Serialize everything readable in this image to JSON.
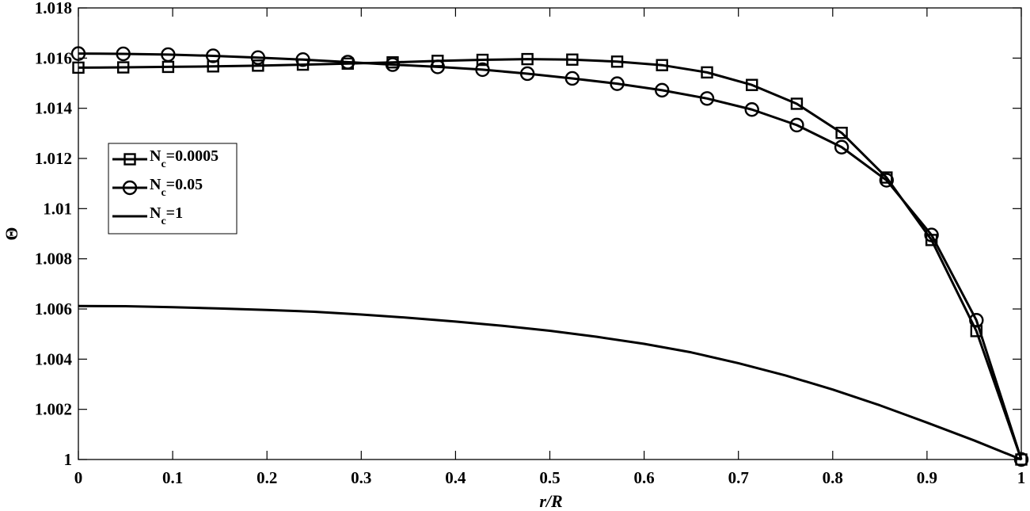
{
  "chart_data": {
    "type": "line",
    "xlabel": "r/R",
    "ylabel": "Θ",
    "xlim": [
      0,
      1
    ],
    "ylim": [
      1,
      1.018
    ],
    "grid": false,
    "legend_placement": "middle-left",
    "x_ticks": [
      "0",
      "0.1",
      "0.2",
      "0.3",
      "0.4",
      "0.5",
      "0.6",
      "0.7",
      "0.8",
      "0.9",
      "1"
    ],
    "y_ticks": [
      "1",
      "1.002",
      "1.004",
      "1.006",
      "1.008",
      "1.01",
      "1.012",
      "1.014",
      "1.016",
      "1.018"
    ],
    "series": [
      {
        "name": "N_c=0.0005",
        "name_main": "N",
        "name_sub": "c",
        "name_rest": "=0.0005",
        "marker": "square",
        "color": "#000000",
        "x": [
          0,
          0.0476,
          0.0952,
          0.1429,
          0.1905,
          0.2381,
          0.2857,
          0.3333,
          0.381,
          0.4286,
          0.4762,
          0.5238,
          0.5714,
          0.619,
          0.6667,
          0.7143,
          0.7619,
          0.8095,
          0.8571,
          0.9048,
          0.9524,
          1
        ],
        "y": [
          1.01562,
          1.01563,
          1.01565,
          1.01567,
          1.0157,
          1.01574,
          1.01578,
          1.01583,
          1.01589,
          1.01593,
          1.01596,
          1.01594,
          1.01586,
          1.01572,
          1.01543,
          1.01493,
          1.01418,
          1.01302,
          1.01124,
          1.00875,
          1.00512,
          1.0
        ]
      },
      {
        "name": "N_c=0.05",
        "name_main": "N",
        "name_sub": "c",
        "name_rest": "=0.05",
        "marker": "circle",
        "color": "#000000",
        "x": [
          0,
          0.0476,
          0.0952,
          0.1429,
          0.1905,
          0.2381,
          0.2857,
          0.3333,
          0.381,
          0.4286,
          0.4762,
          0.5238,
          0.5714,
          0.619,
          0.6667,
          0.7143,
          0.7619,
          0.8095,
          0.8571,
          0.9048,
          0.9524,
          1
        ],
        "y": [
          1.01618,
          1.01617,
          1.01614,
          1.01609,
          1.01602,
          1.01594,
          1.01584,
          1.01574,
          1.01565,
          1.01554,
          1.01538,
          1.01519,
          1.01498,
          1.01472,
          1.01439,
          1.01395,
          1.01333,
          1.01245,
          1.01113,
          1.00895,
          1.00555,
          1.0
        ]
      },
      {
        "name": "N_c=1",
        "name_main": "N",
        "name_sub": "c",
        "name_rest": "=1",
        "marker": "none",
        "color": "#000000",
        "x": [
          0,
          0.05,
          0.1,
          0.15,
          0.2,
          0.25,
          0.3,
          0.35,
          0.4,
          0.45,
          0.5,
          0.55,
          0.6,
          0.65,
          0.7,
          0.75,
          0.8,
          0.85,
          0.9,
          0.95,
          1
        ],
        "y": [
          1.00612,
          1.00611,
          1.00607,
          1.00602,
          1.00596,
          1.00589,
          1.00578,
          1.00565,
          1.0055,
          1.00533,
          1.00513,
          1.00489,
          1.00461,
          1.00427,
          1.00384,
          1.00335,
          1.00279,
          1.00216,
          1.00147,
          1.00076,
          1.0
        ]
      }
    ]
  }
}
